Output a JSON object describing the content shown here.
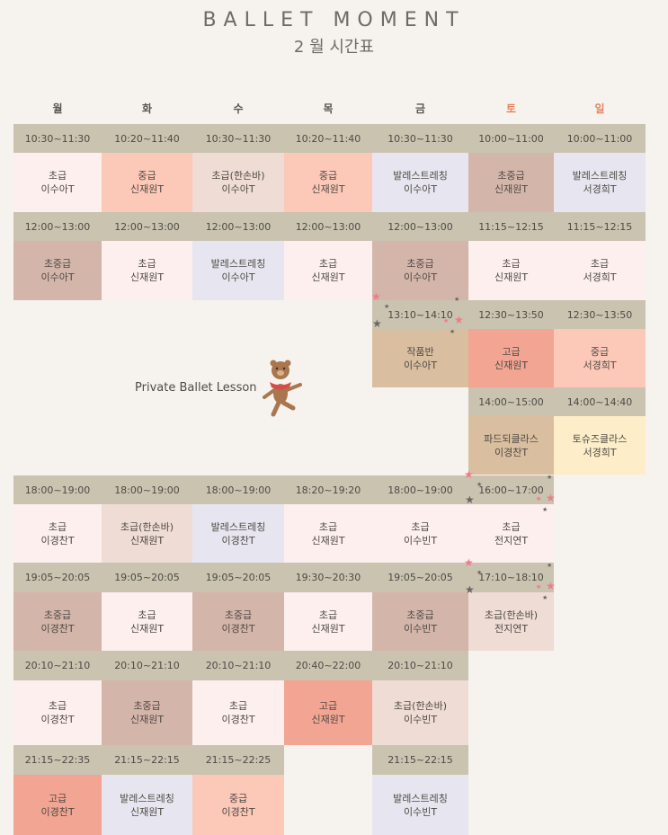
{
  "header": {
    "title": "BALLET MOMENT",
    "subtitle": "2 월 시간표"
  },
  "days": [
    "월",
    "화",
    "수",
    "목",
    "금",
    "토",
    "일"
  ],
  "private_lesson": "Private Ballet Lesson",
  "colors": {
    "weekend": "#e8825e",
    "time_bar": "#c9c3b0",
    "background": "#f6f3ee"
  },
  "slots": [
    {
      "time": "10:30~11:30",
      "cls": "초급",
      "teacher": "이수아T"
    },
    {
      "time": "10:20~11:40",
      "cls": "중급",
      "teacher": "신재원T"
    },
    {
      "time": "10:30~11:30",
      "cls": "초급(한손바)",
      "teacher": "이수아T"
    },
    {
      "time": "10:20~11:40",
      "cls": "중급",
      "teacher": "신재원T"
    },
    {
      "time": "10:30~11:30",
      "cls": "발레스트레칭",
      "teacher": "이수아T"
    },
    {
      "time": "10:00~11:00",
      "cls": "초중급",
      "teacher": "신재원T"
    },
    {
      "time": "10:00~11:00",
      "cls": "발레스트레칭",
      "teacher": "서경희T"
    },
    {
      "time": "12:00~13:00",
      "cls": "초중급",
      "teacher": "이수아T"
    },
    {
      "time": "12:00~13:00",
      "cls": "초급",
      "teacher": "신재원T"
    },
    {
      "time": "12:00~13:00",
      "cls": "발레스트레칭",
      "teacher": "이수아T"
    },
    {
      "time": "12:00~13:00",
      "cls": "초급",
      "teacher": "신재원T"
    },
    {
      "time": "12:00~13:00",
      "cls": "초중급",
      "teacher": "이수아T"
    },
    {
      "time": "11:15~12:15",
      "cls": "초급",
      "teacher": "신재원T"
    },
    {
      "time": "11:15~12:15",
      "cls": "초급",
      "teacher": "서경희T"
    },
    {
      "time": "13:10~14:10",
      "cls": "작품반",
      "teacher": "이수아T"
    },
    {
      "time": "12:30~13:50",
      "cls": "고급",
      "teacher": "신재원T"
    },
    {
      "time": "12:30~13:50",
      "cls": "중급",
      "teacher": "서경희T"
    },
    {
      "time": "14:00~15:00",
      "cls": "파드되클라스",
      "teacher": "이경찬T"
    },
    {
      "time": "14:00~14:40",
      "cls": "토슈즈클라스",
      "teacher": "서경희T"
    },
    {
      "time": "18:00~19:00",
      "cls": "초급",
      "teacher": "이경찬T"
    },
    {
      "time": "18:00~19:00",
      "cls": "초급(한손바)",
      "teacher": "신재원T"
    },
    {
      "time": "18:00~19:00",
      "cls": "발레스트레칭",
      "teacher": "이경찬T"
    },
    {
      "time": "18:20~19:20",
      "cls": "초급",
      "teacher": "신재원T"
    },
    {
      "time": "18:00~19:00",
      "cls": "초급",
      "teacher": "이수빈T"
    },
    {
      "time": "16:00~17:00",
      "cls": "초급",
      "teacher": "전지연T"
    },
    {
      "time": "19:05~20:05",
      "cls": "초중급",
      "teacher": "이경찬T"
    },
    {
      "time": "19:05~20:05",
      "cls": "초급",
      "teacher": "신재원T"
    },
    {
      "time": "19:05~20:05",
      "cls": "초중급",
      "teacher": "이경찬T"
    },
    {
      "time": "19:30~20:30",
      "cls": "초급",
      "teacher": "신재원T"
    },
    {
      "time": "19:05~20:05",
      "cls": "초중급",
      "teacher": "이수빈T"
    },
    {
      "time": "17:10~18:10",
      "cls": "초급(한손바)",
      "teacher": "전지연T"
    },
    {
      "time": "20:10~21:10",
      "cls": "초급",
      "teacher": "이경찬T"
    },
    {
      "time": "20:10~21:10",
      "cls": "초중급",
      "teacher": "신재원T"
    },
    {
      "time": "20:10~21:10",
      "cls": "초급",
      "teacher": "이경찬T"
    },
    {
      "time": "20:40~22:00",
      "cls": "고급",
      "teacher": "신재원T"
    },
    {
      "time": "20:10~21:10",
      "cls": "초급(한손바)",
      "teacher": "이수빈T"
    },
    {
      "time": "21:15~22:35",
      "cls": "고급",
      "teacher": "이경찬T"
    },
    {
      "time": "21:15~22:15",
      "cls": "발레스트레칭",
      "teacher": "신재원T"
    },
    {
      "time": "21:15~22:25",
      "cls": "중급",
      "teacher": "이경찬T"
    },
    {
      "time": "21:15~22:15",
      "cls": "발레스트레칭",
      "teacher": "이수빈T"
    }
  ]
}
